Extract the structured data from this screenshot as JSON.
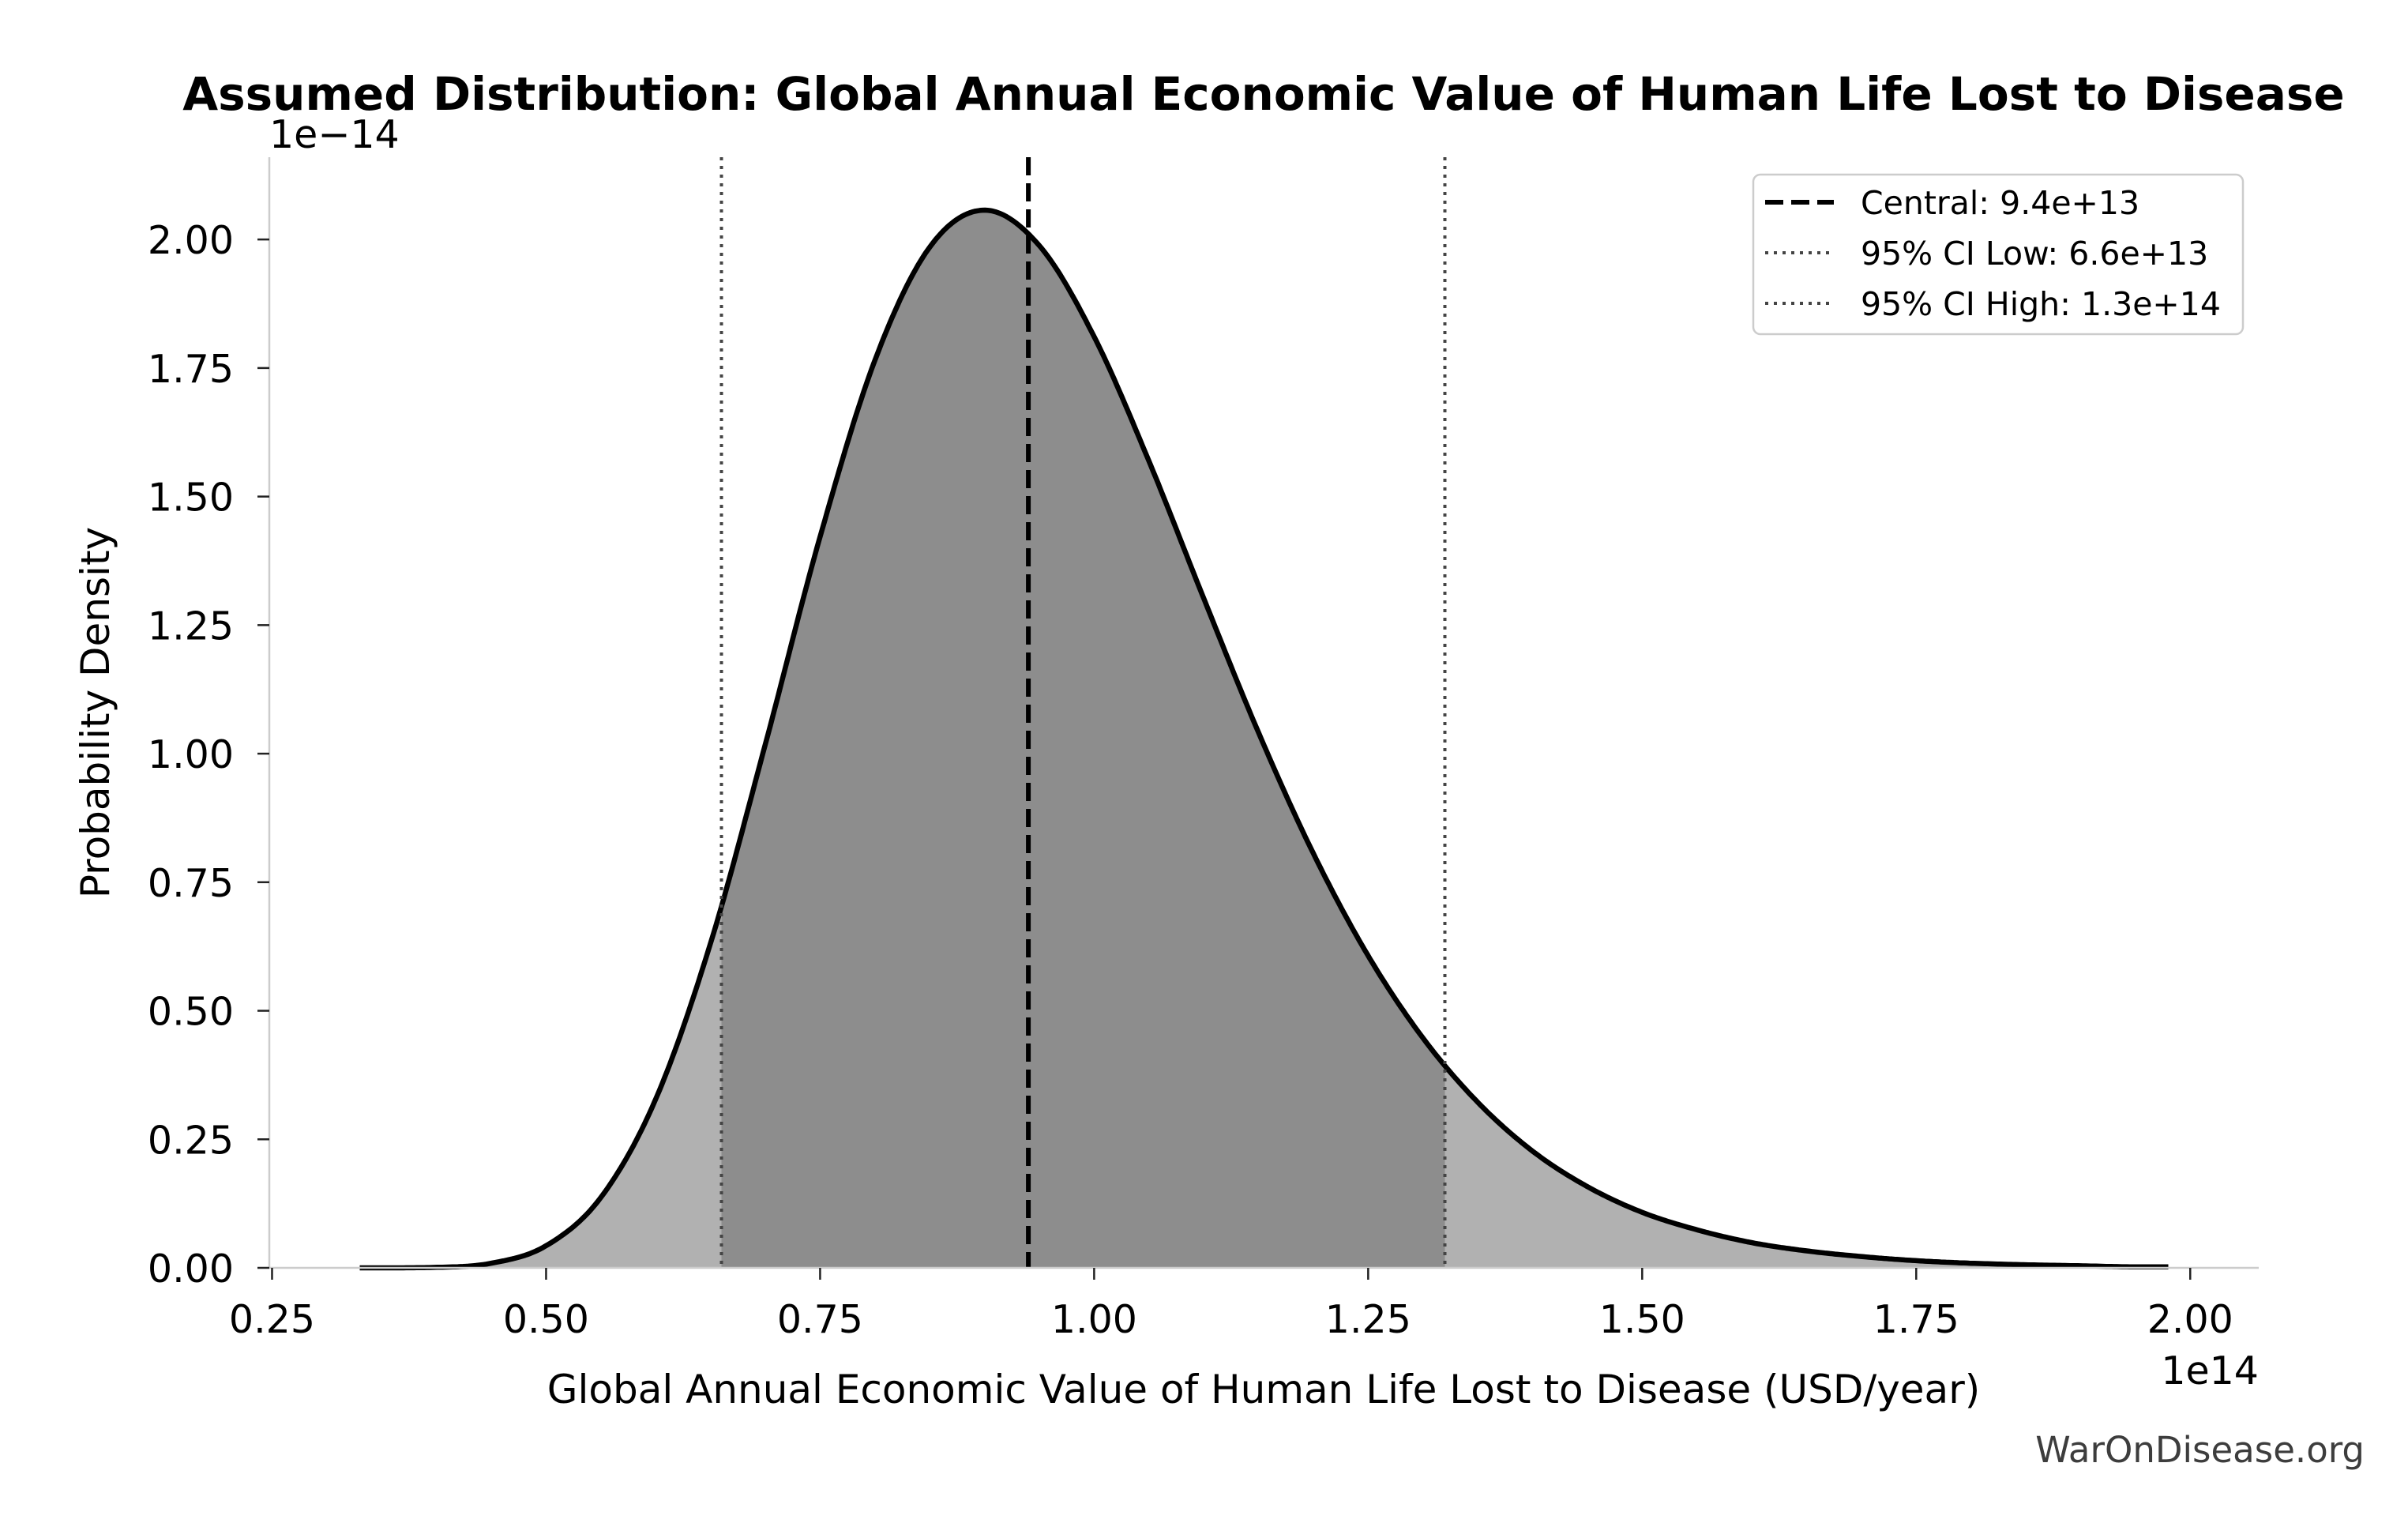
{
  "watermark": "WarOnDisease.org",
  "chart_data": {
    "type": "area",
    "title": "Assumed Distribution: Global Annual Economic Value of Human Life Lost to Disease",
    "xlabel": "Global Annual Economic Value of Human Life Lost to Disease (USD/year)",
    "ylabel": "Probability Density",
    "x_offset_label": "1e14",
    "y_offset_label": "1e−14",
    "xlim": [
      0.2475,
      2.0625
    ],
    "ylim": [
      0,
      2.16
    ],
    "xticks": [
      0.25,
      0.5,
      0.75,
      1.0,
      1.25,
      1.5,
      1.75,
      2.0
    ],
    "xtick_labels": [
      "0.25",
      "0.50",
      "0.75",
      "1.00",
      "1.25",
      "1.50",
      "1.75",
      "2.00"
    ],
    "yticks": [
      0,
      0.25,
      0.5,
      0.75,
      1.0,
      1.25,
      1.5,
      1.75,
      2.0
    ],
    "ytick_labels": [
      "0.00",
      "0.25",
      "0.50",
      "0.75",
      "1.00",
      "1.25",
      "1.50",
      "1.75",
      "2.00"
    ],
    "grid": false,
    "legend_position": "top-right",
    "x": [
      0.33,
      0.35,
      0.4,
      0.45,
      0.5,
      0.55,
      0.6,
      0.65,
      0.7,
      0.75,
      0.8,
      0.85,
      0.9,
      0.95,
      1.0,
      1.05,
      1.1,
      1.15,
      1.2,
      1.25,
      1.3,
      1.35,
      1.4,
      1.45,
      1.5,
      1.55,
      1.6,
      1.65,
      1.7,
      1.75,
      1.8,
      1.85,
      1.9,
      1.95,
      1.98
    ],
    "series": [
      {
        "values": [
          0.0,
          0.0,
          0.001,
          0.009,
          0.043,
          0.137,
          0.328,
          0.631,
          1.018,
          1.422,
          1.765,
          1.985,
          2.057,
          1.988,
          1.811,
          1.569,
          1.302,
          1.041,
          0.806,
          0.607,
          0.447,
          0.322,
          0.227,
          0.158,
          0.108,
          0.074,
          0.049,
          0.033,
          0.022,
          0.014,
          0.009,
          0.006,
          0.004,
          0.002,
          0.002
        ],
        "color": "#000000"
      }
    ],
    "shaded_interval": [
      0.66,
      1.32
    ],
    "reference_lines": [
      {
        "label": "Central: 9.4e+13",
        "x": 0.94,
        "style": "dashed",
        "color": "#000000"
      },
      {
        "label": "95% CI Low: 6.6e+13",
        "x": 0.66,
        "style": "dotted",
        "color": "#444444"
      },
      {
        "label": "95% CI High: 1.3e+14",
        "x": 1.32,
        "style": "dotted",
        "color": "#444444"
      }
    ],
    "colors": {
      "fill": "#b1b1b1",
      "ci_fill": "#8d8d8d",
      "watermark": "#3d3d3d"
    }
  }
}
